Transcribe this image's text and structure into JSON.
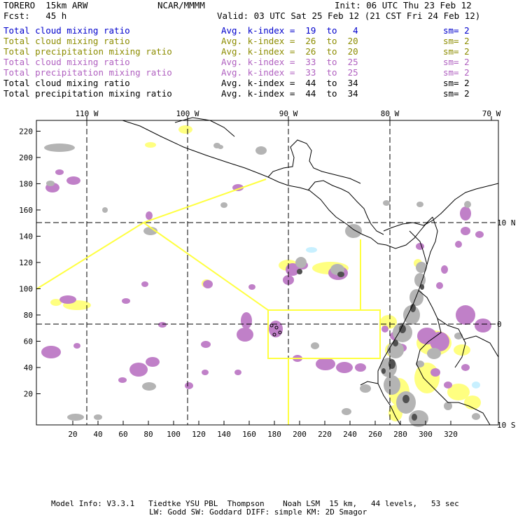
{
  "header": {
    "model": "TORERO  15km ARW",
    "org": "NCAR/MMMM",
    "init": "Init: 06 UTC Thu 23 Feb 12",
    "fcst": "Fcst:   45 h",
    "valid": "Valid: 03 UTC Sat 25 Feb 12 (21 CST Fri 24 Feb 12)"
  },
  "legend": [
    {
      "field": "Total cloud mixing ratio",
      "kindex": "Avg. k-index =  19  to   4",
      "sm": "sm= 2",
      "color": "#0000cc"
    },
    {
      "field": "Total cloud mixing ratio",
      "kindex": "Avg. k-index =  26  to  20",
      "sm": "sm= 2",
      "color": "#8c8c00"
    },
    {
      "field": "Total precipitation mixing ratio",
      "kindex": "Avg. k-index =  26  to  20",
      "sm": "sm= 2",
      "color": "#8c8c00"
    },
    {
      "field": "Total cloud mixing ratio",
      "kindex": "Avg. k-index =  33  to  25",
      "sm": "sm= 2",
      "color": "#b060c0"
    },
    {
      "field": "Total precipitation mixing ratio",
      "kindex": "Avg. k-index =  33  to  25",
      "sm": "sm= 2",
      "color": "#b060c0"
    },
    {
      "field": "Total cloud mixing ratio",
      "kindex": "Avg. k-index =  44  to  34",
      "sm": "sm= 2",
      "color": "#000000"
    },
    {
      "field": "Total precipitation mixing ratio",
      "kindex": "Avg. k-index =  44  to  34",
      "sm": "sm= 2",
      "color": "#000000"
    }
  ],
  "axes": {
    "bottom_ticks": [
      "20",
      "40",
      "60",
      "80",
      "100",
      "120",
      "140",
      "160",
      "180",
      "200",
      "220",
      "240",
      "260",
      "280",
      "300",
      "320"
    ],
    "left_ticks": [
      "20",
      "40",
      "60",
      "80",
      "100",
      "120",
      "140",
      "160",
      "180",
      "200",
      "220"
    ],
    "top_labels": [
      "110 W",
      "100 W",
      "90 W",
      "80 W",
      "70 W"
    ],
    "right_labels": [
      "10 N",
      "0",
      "10 S"
    ]
  },
  "footer": {
    "line1": "Model Info: V3.3.1   Tiedtke YSU PBL  Thompson    Noah LSM  15 km,   44 levels,   53 sec",
    "line2": "LW: Godd SW: Goddard DIFF: simple KM: 2D Smagor"
  },
  "colors": {
    "yellow": "#ffff80",
    "magenta": "#c080c8",
    "gray": "#b4b4b4",
    "dark": "#505050",
    "flight_track": "#ffff40",
    "light_blue": "#c8f0ff"
  }
}
